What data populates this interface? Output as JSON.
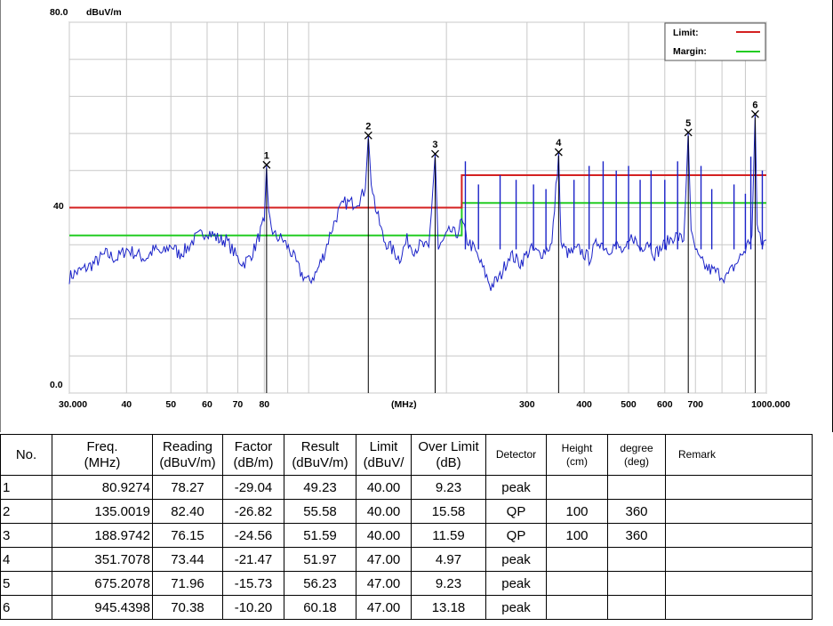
{
  "chart_data": {
    "type": "line",
    "xscale": "log",
    "xlim": [
      30,
      1000
    ],
    "ylim": [
      0,
      80
    ],
    "y_top_label": "80.0",
    "y_unit_label": "dBuV/m",
    "y_mid_label": "40",
    "y_bottom_label": "0.0",
    "x_unit_label": "(MHz)",
    "x_ticks": [
      {
        "value": 30,
        "label": "30.000"
      },
      {
        "value": 40,
        "label": "40"
      },
      {
        "value": 50,
        "label": "50"
      },
      {
        "value": 60,
        "label": "60"
      },
      {
        "value": 70,
        "label": "70"
      },
      {
        "value": 80,
        "label": "80"
      },
      {
        "value": 300,
        "label": "300"
      },
      {
        "value": 400,
        "label": "400"
      },
      {
        "value": 500,
        "label": "500"
      },
      {
        "value": 600,
        "label": "600"
      },
      {
        "value": 700,
        "label": "700"
      },
      {
        "value": 1000,
        "label": "1000.000"
      }
    ],
    "grid_x": [
      30,
      40,
      50,
      60,
      70,
      80,
      90,
      100,
      200,
      300,
      400,
      500,
      600,
      700,
      800,
      900,
      1000
    ],
    "grid_y": [
      0,
      8,
      16,
      24,
      32,
      40,
      48,
      56,
      64,
      72,
      80
    ],
    "legend": {
      "position": "top-right",
      "items": [
        {
          "label": "Limit:",
          "color": "#d42020"
        },
        {
          "label": "Margin:",
          "color": "#22cc22"
        }
      ]
    },
    "limit_line": {
      "color": "#d42020",
      "points": [
        [
          30,
          40
        ],
        [
          216,
          40
        ],
        [
          216,
          47
        ],
        [
          1000,
          47
        ]
      ]
    },
    "margin_line": {
      "color": "#22cc22",
      "points": [
        [
          30,
          34
        ],
        [
          216,
          34
        ],
        [
          216,
          41
        ],
        [
          1000,
          41
        ]
      ]
    },
    "trace": {
      "color": "#1a22c8",
      "points": [
        [
          30,
          25
        ],
        [
          31,
          26
        ],
        [
          32,
          26.5
        ],
        [
          34,
          28
        ],
        [
          36,
          30
        ],
        [
          38,
          29
        ],
        [
          40,
          31
        ],
        [
          42,
          30
        ],
        [
          44,
          29
        ],
        [
          46,
          31
        ],
        [
          48,
          30
        ],
        [
          50,
          32
        ],
        [
          52,
          30
        ],
        [
          54,
          31
        ],
        [
          56,
          33
        ],
        [
          58,
          34
        ],
        [
          60,
          35
        ],
        [
          62,
          34
        ],
        [
          64,
          33
        ],
        [
          66,
          33
        ],
        [
          68,
          31
        ],
        [
          70,
          29
        ],
        [
          72,
          28
        ],
        [
          74,
          29
        ],
        [
          76,
          31
        ],
        [
          78,
          34
        ],
        [
          80,
          37
        ],
        [
          80.9,
          49
        ],
        [
          81.8,
          38
        ],
        [
          84,
          34
        ],
        [
          88,
          33
        ],
        [
          92,
          30
        ],
        [
          96,
          26
        ],
        [
          100,
          24
        ],
        [
          104,
          26
        ],
        [
          108,
          30
        ],
        [
          112,
          35
        ],
        [
          116,
          39
        ],
        [
          120,
          41
        ],
        [
          125,
          41
        ],
        [
          130,
          42
        ],
        [
          133,
          44
        ],
        [
          135,
          55.5
        ],
        [
          137,
          46
        ],
        [
          140,
          40
        ],
        [
          146,
          33
        ],
        [
          152,
          31
        ],
        [
          158,
          29
        ],
        [
          164,
          33
        ],
        [
          170,
          31
        ],
        [
          176,
          32
        ],
        [
          183,
          31
        ],
        [
          189,
          51.6
        ],
        [
          192,
          31
        ],
        [
          198,
          33
        ],
        [
          204,
          35
        ],
        [
          210,
          34
        ],
        [
          216,
          37
        ],
        [
          222,
          33
        ],
        [
          230,
          31
        ],
        [
          240,
          27
        ],
        [
          250,
          23
        ],
        [
          262,
          25
        ],
        [
          275,
          30
        ],
        [
          290,
          28
        ],
        [
          305,
          31
        ],
        [
          320,
          30
        ],
        [
          340,
          32
        ],
        [
          351.7,
          52
        ],
        [
          356,
          32
        ],
        [
          370,
          30
        ],
        [
          390,
          31
        ],
        [
          410,
          29
        ],
        [
          430,
          33
        ],
        [
          450,
          31
        ],
        [
          470,
          32
        ],
        [
          490,
          30
        ],
        [
          510,
          34
        ],
        [
          530,
          31
        ],
        [
          550,
          33
        ],
        [
          570,
          30
        ],
        [
          600,
          32
        ],
        [
          630,
          34
        ],
        [
          660,
          33
        ],
        [
          675,
          56.2
        ],
        [
          685,
          34
        ],
        [
          710,
          29
        ],
        [
          740,
          27
        ],
        [
          780,
          26
        ],
        [
          820,
          25
        ],
        [
          860,
          28
        ],
        [
          900,
          31
        ],
        [
          930,
          34
        ],
        [
          945.4,
          60.2
        ],
        [
          955,
          36
        ],
        [
          975,
          32
        ],
        [
          1000,
          33
        ]
      ],
      "spikes": [
        {
          "x": 220,
          "y": 50
        },
        {
          "x": 235,
          "y": 45
        },
        {
          "x": 262,
          "y": 47
        },
        {
          "x": 284,
          "y": 46
        },
        {
          "x": 310,
          "y": 45
        },
        {
          "x": 330,
          "y": 44
        },
        {
          "x": 380,
          "y": 46
        },
        {
          "x": 410,
          "y": 49
        },
        {
          "x": 440,
          "y": 50
        },
        {
          "x": 470,
          "y": 48
        },
        {
          "x": 500,
          "y": 49
        },
        {
          "x": 530,
          "y": 46
        },
        {
          "x": 560,
          "y": 48
        },
        {
          "x": 600,
          "y": 46
        },
        {
          "x": 640,
          "y": 50
        },
        {
          "x": 720,
          "y": 49
        },
        {
          "x": 760,
          "y": 44
        },
        {
          "x": 850,
          "y": 45
        },
        {
          "x": 900,
          "y": 43
        },
        {
          "x": 925,
          "y": 51
        },
        {
          "x": 980,
          "y": 48
        }
      ]
    },
    "markers": [
      {
        "label": "1",
        "x": 80.9274,
        "y": 49.23
      },
      {
        "label": "2",
        "x": 135.0019,
        "y": 55.58
      },
      {
        "label": "3",
        "x": 188.9742,
        "y": 51.59
      },
      {
        "label": "4",
        "x": 351.7078,
        "y": 51.97
      },
      {
        "label": "5",
        "x": 675.2078,
        "y": 56.23
      },
      {
        "label": "6",
        "x": 945.4398,
        "y": 60.18
      }
    ]
  },
  "table": {
    "headers": [
      {
        "text": "No.",
        "small": false
      },
      {
        "text": "Freq.\n(MHz)",
        "small": false
      },
      {
        "text": "Reading\n(dBuV/m)",
        "small": false
      },
      {
        "text": "Factor\n(dB/m)",
        "small": false
      },
      {
        "text": "Result\n(dBuV/m)",
        "small": false
      },
      {
        "text": "Limit\n(dBuV/",
        "small": false
      },
      {
        "text": "Over Limit\n(dB)",
        "small": false
      },
      {
        "text": "Detector",
        "small": true
      },
      {
        "text": "Height\n(cm)",
        "small": true
      },
      {
        "text": "degree\n(deg)",
        "small": true
      },
      {
        "text": "Remark",
        "small": true
      }
    ],
    "rows": [
      {
        "no": "1",
        "freq": "80.9274",
        "reading": "78.27",
        "factor": "-29.04",
        "result": "49.23",
        "limit": "40.00",
        "over": "9.23",
        "detector": "peak",
        "height": "",
        "degree": "",
        "remark": ""
      },
      {
        "no": "2",
        "freq": "135.0019",
        "reading": "82.40",
        "factor": "-26.82",
        "result": "55.58",
        "limit": "40.00",
        "over": "15.58",
        "detector": "QP",
        "height": "100",
        "degree": "360",
        "remark": ""
      },
      {
        "no": "3",
        "freq": "188.9742",
        "reading": "76.15",
        "factor": "-24.56",
        "result": "51.59",
        "limit": "40.00",
        "over": "11.59",
        "detector": "QP",
        "height": "100",
        "degree": "360",
        "remark": ""
      },
      {
        "no": "4",
        "freq": "351.7078",
        "reading": "73.44",
        "factor": "-21.47",
        "result": "51.97",
        "limit": "47.00",
        "over": "4.97",
        "detector": "peak",
        "height": "",
        "degree": "",
        "remark": ""
      },
      {
        "no": "5",
        "freq": "675.2078",
        "reading": "71.96",
        "factor": "-15.73",
        "result": "56.23",
        "limit": "47.00",
        "over": "9.23",
        "detector": "peak",
        "height": "",
        "degree": "",
        "remark": ""
      },
      {
        "no": "6",
        "freq": "945.4398",
        "reading": "70.38",
        "factor": "-10.20",
        "result": "60.18",
        "limit": "47.00",
        "over": "13.18",
        "detector": "peak",
        "height": "",
        "degree": "",
        "remark": ""
      }
    ]
  }
}
